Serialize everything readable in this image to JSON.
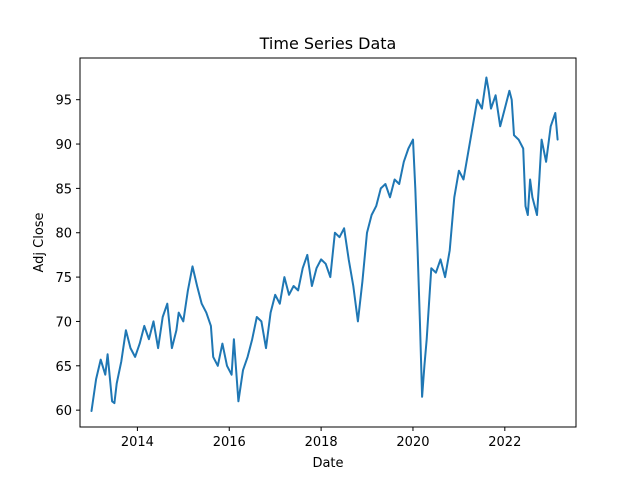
{
  "chart_data": {
    "type": "line",
    "title": "Time Series Data",
    "xlabel": "Date",
    "ylabel": "Adj Close",
    "xlim": [
      2012.75,
      2023.55
    ],
    "ylim": [
      58.1,
      99.7
    ],
    "x_ticks": [
      2014,
      2016,
      2018,
      2020,
      2022
    ],
    "x_tick_labels": [
      "2014",
      "2016",
      "2018",
      "2020",
      "2022"
    ],
    "y_ticks": [
      60,
      65,
      70,
      75,
      80,
      85,
      90,
      95
    ],
    "y_tick_labels": [
      "60",
      "65",
      "70",
      "75",
      "80",
      "85",
      "90",
      "95"
    ],
    "grid": false,
    "legend": "none",
    "color": "#1f77b4",
    "series": [
      {
        "x": [
          2013.0,
          2013.1,
          2013.2,
          2013.3,
          2013.35,
          2013.45,
          2013.5,
          2013.55,
          2013.65,
          2013.75,
          2013.85,
          2013.95,
          2014.05,
          2014.15,
          2014.25,
          2014.35,
          2014.45,
          2014.55,
          2014.65,
          2014.75,
          2014.85,
          2014.9,
          2015.0,
          2015.1,
          2015.2,
          2015.3,
          2015.4,
          2015.5,
          2015.6,
          2015.65,
          2015.75,
          2015.85,
          2015.95,
          2016.05,
          2016.1,
          2016.2,
          2016.3,
          2016.4,
          2016.5,
          2016.6,
          2016.7,
          2016.8,
          2016.9,
          2017.0,
          2017.1,
          2017.2,
          2017.3,
          2017.4,
          2017.5,
          2017.6,
          2017.7,
          2017.8,
          2017.9,
          2018.0,
          2018.1,
          2018.2,
          2018.3,
          2018.4,
          2018.5,
          2018.6,
          2018.7,
          2018.8,
          2018.9,
          2019.0,
          2019.1,
          2019.2,
          2019.3,
          2019.4,
          2019.5,
          2019.6,
          2019.7,
          2019.8,
          2019.9,
          2020.0,
          2020.05,
          2020.1,
          2020.15,
          2020.2,
          2020.25,
          2020.3,
          2020.35,
          2020.4,
          2020.5,
          2020.6,
          2020.7,
          2020.8,
          2020.9,
          2021.0,
          2021.1,
          2021.2,
          2021.3,
          2021.4,
          2021.5,
          2021.6,
          2021.65,
          2021.7,
          2021.8,
          2021.9,
          2022.0,
          2022.1,
          2022.15,
          2022.2,
          2022.3,
          2022.4,
          2022.45,
          2022.5,
          2022.55,
          2022.6,
          2022.7,
          2022.75,
          2022.8,
          2022.9,
          2023.0,
          2023.1,
          2023.15
        ],
        "y": [
          59.9,
          63.5,
          65.7,
          64.0,
          66.3,
          61.0,
          60.8,
          63.0,
          65.5,
          69.0,
          67.0,
          66.0,
          67.5,
          69.5,
          68.0,
          70.0,
          67.0,
          70.5,
          72.0,
          67.0,
          69.0,
          71.0,
          70.0,
          73.5,
          76.2,
          74.0,
          72.0,
          71.0,
          69.5,
          66.0,
          65.0,
          67.5,
          65.0,
          64.0,
          68.0,
          61.0,
          64.5,
          66.0,
          68.0,
          70.5,
          70.0,
          67.0,
          71.0,
          73.0,
          72.0,
          75.0,
          73.0,
          74.0,
          73.5,
          76.0,
          77.5,
          74.0,
          76.0,
          77.0,
          76.5,
          75.0,
          80.0,
          79.5,
          80.5,
          77.0,
          74.0,
          70.0,
          74.5,
          80.0,
          82.0,
          83.0,
          85.0,
          85.5,
          84.0,
          86.0,
          85.5,
          88.0,
          89.5,
          90.5,
          85.0,
          78.0,
          70.0,
          61.5,
          65.0,
          68.0,
          72.0,
          76.0,
          75.5,
          77.0,
          75.0,
          78.0,
          84.0,
          87.0,
          86.0,
          89.0,
          92.0,
          95.0,
          94.0,
          97.5,
          96.0,
          94.0,
          95.5,
          92.0,
          94.0,
          96.0,
          95.0,
          91.0,
          90.5,
          89.5,
          83.0,
          82.0,
          86.0,
          84.0,
          82.0,
          86.0,
          90.5,
          88.0,
          92.0,
          93.5,
          90.5
        ]
      }
    ]
  }
}
